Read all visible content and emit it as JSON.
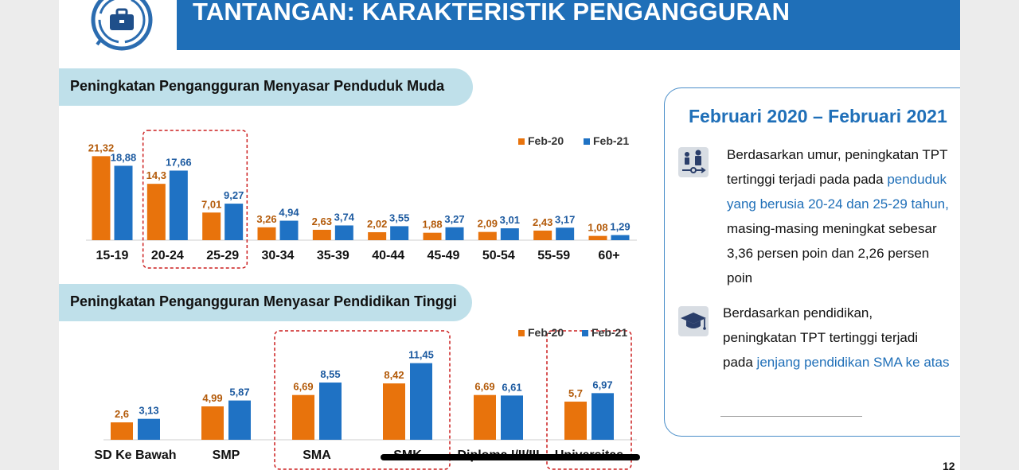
{
  "header": {
    "title": "TANTANGAN: KARAKTERISTIK PENGANGGURAN",
    "logo_icon": "briefcase-icon"
  },
  "colors": {
    "feb20": "#e8730c",
    "feb21": "#1f72c4",
    "feb20_label": "#b35a09",
    "feb21_label": "#1c5aa0",
    "highlight_box": "#cc1f1f",
    "title_bar": "#1f6fb8",
    "pill": "#bfe0ea"
  },
  "section_age": {
    "title": "Peningkatan Pengangguran Menyasar Penduduk Muda"
  },
  "section_edu": {
    "title": "Peningkatan Pengangguran Menyasar Pendidikan Tinggi"
  },
  "chart_data": [
    {
      "type": "bar",
      "categories": [
        "15-19",
        "20-24",
        "25-29",
        "30-34",
        "35-39",
        "40-44",
        "45-49",
        "50-54",
        "55-59",
        "60+"
      ],
      "series": [
        {
          "name": "Feb-20",
          "values": [
            21.32,
            14.3,
            7.01,
            3.26,
            2.63,
            2.02,
            1.88,
            2.09,
            2.43,
            1.08
          ],
          "labels": [
            "21,32",
            "14,3",
            "7,01",
            "3,26",
            "2,63",
            "2,02",
            "1,88",
            "2,09",
            "2,43",
            "1,08"
          ]
        },
        {
          "name": "Feb-21",
          "values": [
            18.88,
            17.66,
            9.27,
            4.94,
            3.74,
            3.55,
            3.27,
            3.01,
            3.17,
            1.29
          ],
          "labels": [
            "18,88",
            "17,66",
            "9,27",
            "4,94",
            "3,74",
            "3,55",
            "3,27",
            "3,01",
            "3,17",
            "1,29"
          ]
        }
      ],
      "ylim": [
        0,
        22
      ],
      "legend": "top-right",
      "grid": false,
      "highlighted_categories": [
        "20-24",
        "25-29"
      ]
    },
    {
      "type": "bar",
      "categories": [
        "SD Ke Bawah",
        "SMP",
        "SMA",
        "SMK",
        "Diploma I/II/III",
        "Universitas"
      ],
      "series": [
        {
          "name": "Feb-20",
          "values": [
            2.6,
            4.99,
            6.69,
            8.42,
            6.69,
            5.7
          ],
          "labels": [
            "2,6",
            "4,99",
            "6,69",
            "8,42",
            "6,69",
            "5,7"
          ]
        },
        {
          "name": "Feb-21",
          "values": [
            3.13,
            5.87,
            8.55,
            11.45,
            6.61,
            6.97
          ],
          "labels": [
            "3,13",
            "5,87",
            "8,55",
            "11,45",
            "6,61",
            "6,97"
          ]
        }
      ],
      "ylim": [
        0,
        12
      ],
      "legend": "top-right",
      "grid": false,
      "highlighted_categories": [
        "SMA",
        "SMK",
        "Universitas"
      ]
    }
  ],
  "info_card": {
    "title": "Februari 2020 – Februari 2021",
    "age": {
      "icon": "age-groups-icon",
      "text1": "Berdasarkan umur, peningkatan TPT tertinggi terjadi pada pada ",
      "highlight": "penduduk yang berusia 20-24 dan 25-29 tahun,",
      "text2": " masing-masing meningkat sebesar 3,36 persen poin dan 2,26 persen poin"
    },
    "edu": {
      "icon": "graduation-cap-icon",
      "text1": "Berdasarkan pendidikan, peningkatan TPT tertinggi  terjadi pada ",
      "highlight": "jenjang pendidikan SMA ke atas"
    }
  },
  "footer": {
    "page_number": "12"
  }
}
